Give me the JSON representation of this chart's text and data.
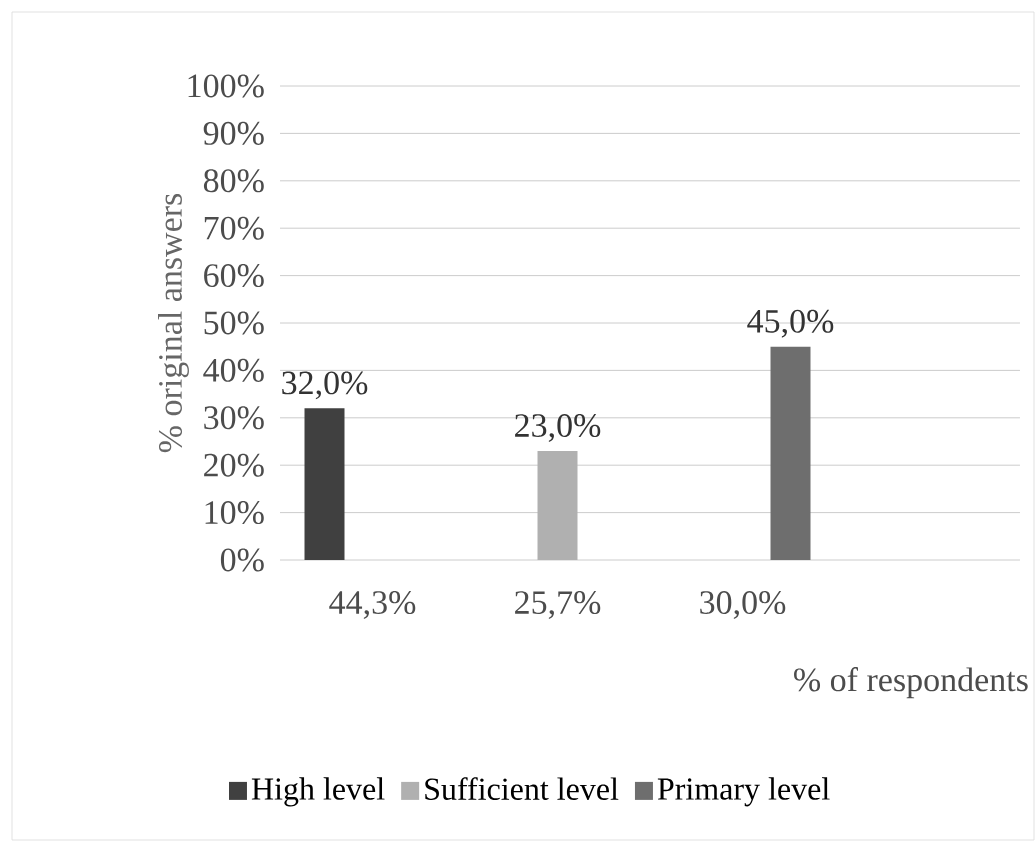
{
  "chart_data": {
    "type": "bar",
    "ylabel": "% original  answers",
    "xlabel": "% of respondents",
    "categories": [
      "44,3%",
      "25,7%",
      "30,0%",
      null
    ],
    "series": [
      {
        "name": "High level",
        "color": "#404040",
        "values": [
          32.0,
          null,
          null,
          null
        ],
        "value_labels": [
          "32,0%",
          null,
          null,
          null
        ]
      },
      {
        "name": "Sufficient level",
        "color": "#b0b0b0",
        "values": [
          null,
          23.0,
          null,
          null
        ],
        "value_labels": [
          null,
          "23,0%",
          null,
          null
        ]
      },
      {
        "name": "Primary level",
        "color": "#6e6e6e",
        "values": [
          null,
          null,
          45.0,
          null
        ],
        "value_labels": [
          null,
          null,
          "45,0%",
          null
        ]
      }
    ],
    "ylim": [
      0,
      100
    ],
    "yticks": [
      {
        "value": 0,
        "label": "0%"
      },
      {
        "value": 10,
        "label": "10%"
      },
      {
        "value": 20,
        "label": "20%"
      },
      {
        "value": 30,
        "label": "30%"
      },
      {
        "value": 40,
        "label": "40%"
      },
      {
        "value": 50,
        "label": "50%"
      },
      {
        "value": 60,
        "label": "60%"
      },
      {
        "value": 70,
        "label": "70%"
      },
      {
        "value": 80,
        "label": "80%"
      },
      {
        "value": 90,
        "label": "90%"
      },
      {
        "value": 100,
        "label": "100%"
      }
    ],
    "grid": "y",
    "legend": "bottom"
  }
}
